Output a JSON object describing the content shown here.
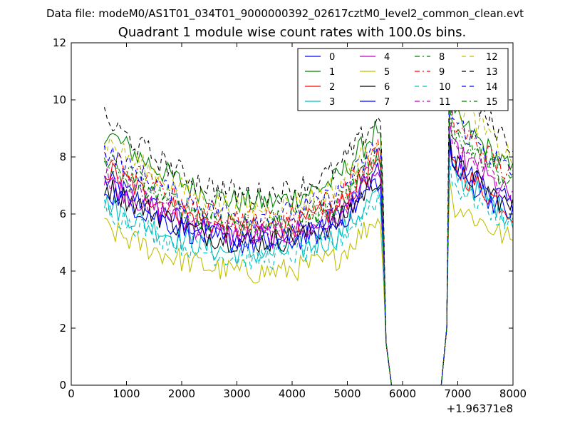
{
  "suptitle": "Data file: modeM0/AS1T01_034T01_9000000392_02617cztM0_level2_common_clean.evt",
  "chart_data": {
    "type": "line",
    "title": "Quadrant 1 module wise count rates with 100.0s bins.",
    "xlabel": "",
    "ylabel": "",
    "x_offset_label": "+1.96371e8",
    "xlim": [
      0,
      8000
    ],
    "ylim": [
      0,
      12
    ],
    "xticks": [
      "0",
      "1000",
      "2000",
      "3000",
      "4000",
      "5000",
      "6000",
      "7000",
      "8000"
    ],
    "yticks": [
      "0",
      "2",
      "4",
      "6",
      "8",
      "10",
      "12"
    ],
    "grid": false,
    "legend": "top-right, 4 columns",
    "series": [
      {
        "name": "0",
        "color": "#0000ff",
        "dash": "solid",
        "early": 7.2,
        "late": 6.7
      },
      {
        "name": "1",
        "color": "#008000",
        "dash": "solid",
        "early": 8.9,
        "late": 8.0
      },
      {
        "name": "2",
        "color": "#ff0000",
        "dash": "solid",
        "early": 7.6,
        "late": 6.5
      },
      {
        "name": "3",
        "color": "#00bfbf",
        "dash": "solid",
        "early": 6.4,
        "late": 6.3
      },
      {
        "name": "4",
        "color": "#bf00bf",
        "dash": "solid",
        "early": 7.2,
        "late": 7.0
      },
      {
        "name": "5",
        "color": "#bfbf00",
        "dash": "solid",
        "early": 5.5,
        "late": 5.4
      },
      {
        "name": "6",
        "color": "#000000",
        "dash": "solid",
        "early": 7.0,
        "late": 6.6
      },
      {
        "name": "7",
        "color": "#0000ff",
        "dash": "solid",
        "early": 6.9,
        "late": 6.4
      },
      {
        "name": "8",
        "color": "#008000",
        "dash": "dashdot",
        "early": 7.7,
        "late": 7.5
      },
      {
        "name": "9",
        "color": "#ff0000",
        "dash": "dashdot",
        "early": 8.1,
        "late": 7.8
      },
      {
        "name": "10",
        "color": "#00bfbf",
        "dash": "dashed",
        "early": 6.2,
        "late": 6.0
      },
      {
        "name": "11",
        "color": "#bf00bf",
        "dash": "dashdot",
        "early": 7.4,
        "late": 7.2
      },
      {
        "name": "12",
        "color": "#bfbf00",
        "dash": "dashed",
        "early": 8.6,
        "late": 8.5
      },
      {
        "name": "13",
        "color": "#000000",
        "dash": "dashed",
        "early": 9.3,
        "late": 9.0
      },
      {
        "name": "14",
        "color": "#0000ff",
        "dash": "dashed",
        "early": 8.2,
        "late": 7.9
      },
      {
        "name": "15",
        "color": "#008000",
        "dash": "dashdot",
        "early": 7.9,
        "late": 7.6
      }
    ]
  }
}
